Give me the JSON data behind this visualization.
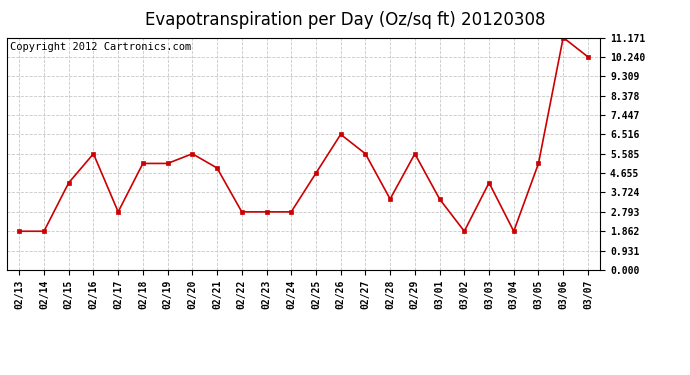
{
  "title": "Evapotranspiration per Day (Oz/sq ft) 20120308",
  "copyright": "Copyright 2012 Cartronics.com",
  "x_labels": [
    "02/13",
    "02/14",
    "02/15",
    "02/16",
    "02/17",
    "02/18",
    "02/19",
    "02/20",
    "02/21",
    "02/22",
    "02/23",
    "02/24",
    "02/25",
    "02/26",
    "02/27",
    "02/28",
    "02/29",
    "03/01",
    "03/02",
    "03/03",
    "03/04",
    "03/05",
    "03/06",
    "03/07"
  ],
  "y_values": [
    1.862,
    1.862,
    4.19,
    5.585,
    2.793,
    5.12,
    5.12,
    5.585,
    4.9,
    2.793,
    2.793,
    2.793,
    4.655,
    6.516,
    5.585,
    3.41,
    5.585,
    3.41,
    1.862,
    4.19,
    1.862,
    5.12,
    11.171,
    10.24
  ],
  "line_color": "#cc0000",
  "marker_color": "#cc0000",
  "bg_color": "#ffffff",
  "grid_color": "#c8c8c8",
  "ylim_max": 11.171,
  "yticks": [
    0.0,
    0.931,
    1.862,
    2.793,
    3.724,
    4.655,
    5.585,
    6.516,
    7.447,
    8.378,
    9.309,
    10.24,
    11.171
  ],
  "title_fontsize": 12,
  "copyright_fontsize": 7.5
}
